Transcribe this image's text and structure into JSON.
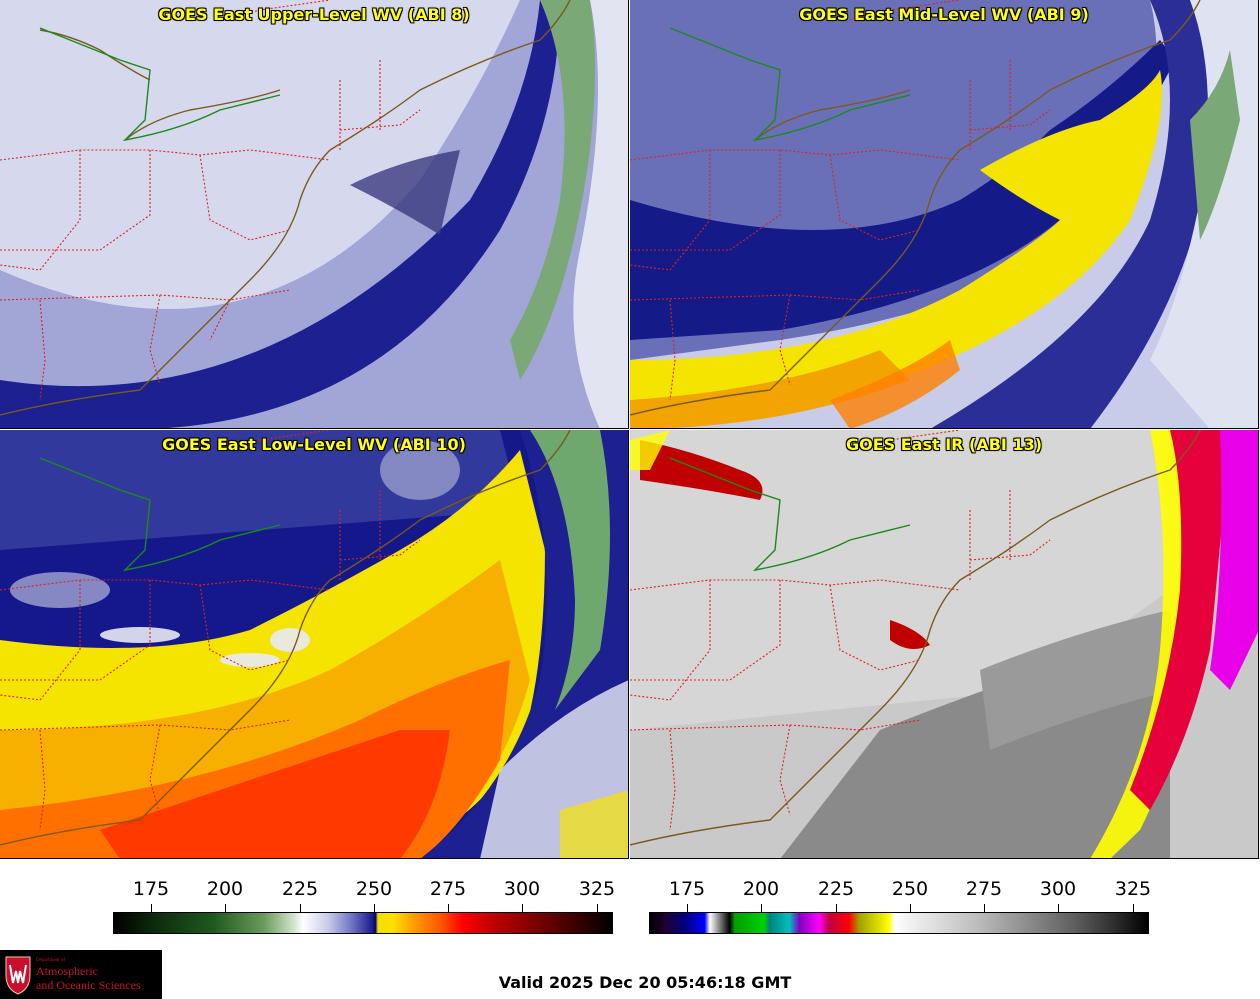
{
  "panels": [
    {
      "title": "GOES East Upper-Level WV (ABI 8)",
      "product": "upper-wv"
    },
    {
      "title": "GOES East Mid-Level WV (ABI 9)",
      "product": "mid-wv"
    },
    {
      "title": "GOES East Low-Level WV (ABI 10)",
      "product": "low-wv"
    },
    {
      "title": "GOES East IR (ABI 13)",
      "product": "ir"
    }
  ],
  "colorbars": [
    {
      "name": "wv-scale",
      "ticks": [
        "175",
        "200",
        "225",
        "250",
        "275",
        "300",
        "325"
      ],
      "range": [
        163,
        331
      ]
    },
    {
      "name": "ir-scale",
      "ticks": [
        "175",
        "200",
        "225",
        "250",
        "275",
        "300",
        "325"
      ],
      "range": [
        163,
        331
      ]
    }
  ],
  "colors": {
    "title_text": "#ffff1a",
    "state_border": "#e02020",
    "coastline": "#7a5a1a",
    "lake_line": "#1a8a1a"
  },
  "logo": {
    "dept": "Department of",
    "line1": "Atmospheric",
    "line2": "and Oceanic Sciences"
  },
  "valid_time": "Valid 2025 Dec 20 05:46:18 GMT"
}
